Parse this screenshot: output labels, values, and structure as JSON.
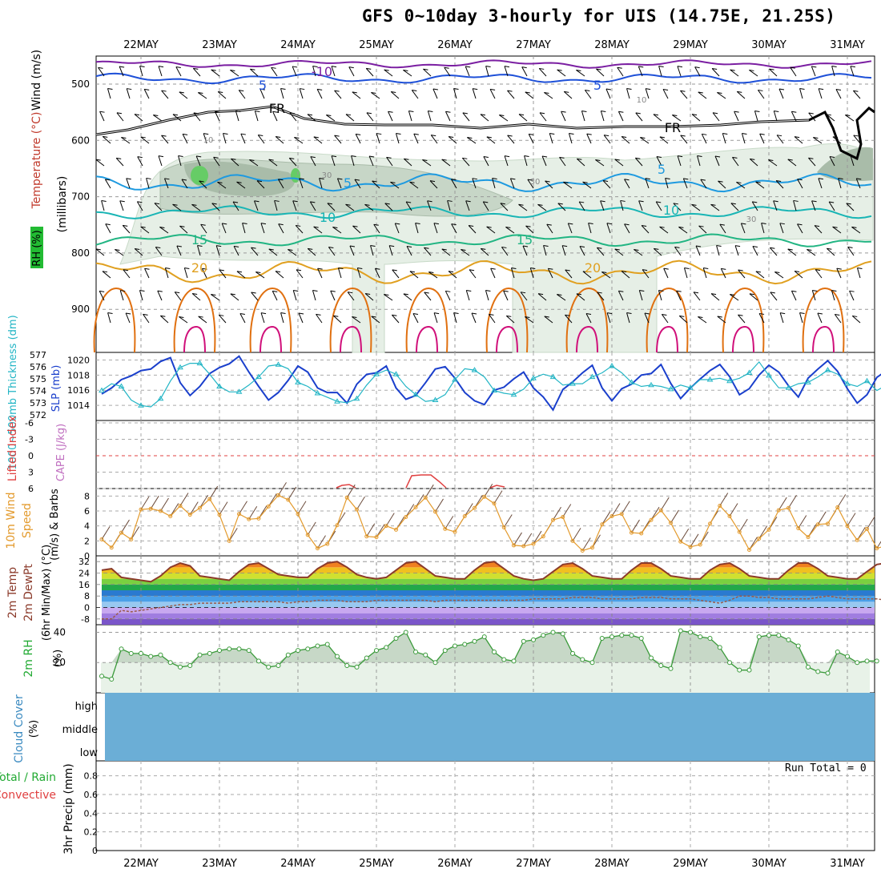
{
  "title": "GFS 0~10day 3-hourly for UIS (14.75E, 21.25S)",
  "dates": [
    "22MAY",
    "23MAY",
    "24MAY",
    "25MAY",
    "26MAY",
    "27MAY",
    "28MAY",
    "29MAY",
    "30MAY",
    "31MAY"
  ],
  "colors": {
    "isotherm_minus10": "#7b1fa2",
    "isotherm_5": "#1e50d8",
    "isotherm_freezing": "#000000",
    "isotherm_5_low": "#1e9ae0",
    "isotherm_10": "#19b5b5",
    "isotherm_15": "#22b583",
    "isotherm_20": "#e0a020",
    "isotherm_25": "#e07010",
    "isotherm_30": "#d0107a",
    "rh_shade": "#d8e8d8",
    "slp": "#1a3fcc",
    "thickness": "#22b5c5",
    "wind_speed": "#e39a2c",
    "temp_line": "#8b3a2a",
    "dewpoint_line": "#9a5a4a",
    "rh2m": "#3a9a3a",
    "cloud": "#6baed6",
    "cape_line": "#e04040"
  },
  "panels": {
    "upper": {
      "ylabel_wind": "Wind (m/s)",
      "ylabel_temp": "Temperature (°C)",
      "ylabel_rh": "RH (%)",
      "ylabel_mb": "(millibars)",
      "yticks": [
        "500",
        "600",
        "700",
        "800",
        "900"
      ],
      "contour_labels": [
        "-10",
        "5",
        "5",
        "FR",
        "FR",
        "5",
        "5",
        "10",
        "10",
        "15",
        "15",
        "20",
        "20",
        "30",
        "30",
        "30",
        "10",
        "10"
      ]
    },
    "slp_thickness": {
      "ylabel_left": "1000~500mb Thickness (dm)",
      "ylabel_right": "SLP (mb)",
      "ticks_left": [
        "577",
        "576",
        "575",
        "574",
        "573",
        "572"
      ],
      "ticks_right": [
        "1020",
        "1018",
        "1016",
        "1014"
      ]
    },
    "stability": {
      "ylabel_left": "Lifted Index",
      "ylabel_right": "CAPE (J/kg)",
      "ticks": [
        "-6",
        "-3",
        "0",
        "3",
        "6"
      ]
    },
    "wind10m": {
      "ylabel_left": "10m Wind",
      "ylabel_mid": "Speed",
      "ylabel_right": "(m/s) & Barbs",
      "ticks": [
        "8",
        "6",
        "4",
        "2",
        "0"
      ]
    },
    "temp2m": {
      "ylabel_1": "2m Temp",
      "ylabel_2": "2m DewPt",
      "ylabel_3": "(6hr Min/Max) (°C)",
      "ticks": [
        "32",
        "24",
        "16",
        "8",
        "0",
        "-8"
      ]
    },
    "rh2m": {
      "ylabel": "2m RH",
      "unit": "(%)",
      "ticks": [
        "40",
        "20"
      ]
    },
    "cloud": {
      "ylabel": "Cloud Cover",
      "unit": "(%)",
      "levels": [
        "high",
        "middle",
        "low"
      ]
    },
    "precip": {
      "ylabel_left1": "Total / Rain",
      "ylabel_left2": "Convective",
      "ylabel": "3hr Precip (mm)",
      "ticks": [
        "0.8",
        "0.6",
        "0.4",
        "0.2",
        "0"
      ],
      "run_total": "Run Total = 0"
    }
  },
  "chart_data": [
    {
      "type": "line",
      "panel": "SLP / 1000-500mb thickness",
      "x_unit": "3-hourly steps from 21MAY 12Z",
      "series": [
        {
          "name": "SLP (mb)",
          "values": [
            1015.5,
            1016.3,
            1017.4,
            1017.9,
            1018.6,
            1018.8,
            1019.8,
            1020.3,
            1017,
            1015.3,
            1016.5,
            1018.2,
            1019,
            1019.5,
            1020.5,
            1018.4,
            1016.5,
            1014.7,
            1015.7,
            1017.3,
            1019.2,
            1018.4,
            1016.3,
            1015.7,
            1015.7,
            1014.3,
            1016.8,
            1018.1,
            1018.3,
            1019.2,
            1016.3,
            1014.8,
            1015.3,
            1017,
            1018.8,
            1019.1,
            1017.6,
            1015.7,
            1014.6,
            1014.1,
            1016,
            1016.4,
            1017.5,
            1018.4,
            1016.3,
            1015.1,
            1013.4,
            1016.1,
            1017.1,
            1018.3,
            1019.3,
            1016.3,
            1014.6,
            1016.2,
            1016.8,
            1018,
            1018.2,
            1019.4,
            1016.9,
            1014.9,
            1016.3,
            1017.5,
            1018.6,
            1019.4,
            1017.8,
            1015.4,
            1016.2,
            1018,
            1019.3,
            1018.4,
            1016.6,
            1015.1,
            1017.6,
            1018.8,
            1019.9,
            1018.5,
            1016.2,
            1014.3,
            1015.4,
            1017.7,
            1018.6,
            1017.3,
            1015.7,
            1016.1,
            1016.2,
            1015.8,
            1016.9
          ]
        },
        {
          "name": "Thickness (dm)",
          "values": [
            574.2,
            574.7,
            574.5,
            573.5,
            573.1,
            573,
            573.6,
            574.9,
            575.9,
            576.2,
            576.2,
            575.4,
            574.5,
            574.1,
            574.1,
            574.6,
            575.2,
            576,
            576.1,
            575.8,
            574.8,
            574.5,
            574,
            573.7,
            573.4,
            573.3,
            573.6,
            574.6,
            575.4,
            575.7,
            575.4,
            574.5,
            573.9,
            573.4,
            573.5,
            573.9,
            575,
            575.8,
            575.7,
            575.2,
            574.2,
            574,
            573.9,
            574.3,
            575.1,
            575.4,
            575.2,
            574.6,
            574.7,
            574.7,
            575.2,
            575.5,
            576,
            575.5,
            574.8,
            574.5,
            574.6,
            574.5,
            574.3,
            574.6,
            574.4,
            575,
            575,
            575.1,
            574.9,
            575.1,
            575.5,
            576.3,
            575.3,
            574.4,
            574.4,
            574.7,
            574.8,
            575.2,
            575.7,
            575.4,
            574.7,
            574.5,
            574.9,
            574.2,
            574.6,
            575.7,
            575.9,
            575.4,
            574.4,
            574.1,
            574.1
          ]
        }
      ],
      "ylim_left": [
        572,
        577
      ],
      "ylim_right": [
        1012,
        1021
      ]
    },
    {
      "type": "line",
      "panel": "10m wind speed",
      "series": [
        {
          "name": "Speed (m/s)",
          "values": [
            2.2,
            1.1,
            3.1,
            2.2,
            6.2,
            6.3,
            6,
            5.3,
            6.7,
            5.5,
            6.4,
            7.6,
            5.5,
            2,
            5.6,
            4.9,
            5,
            6.6,
            8.1,
            7.5,
            5.6,
            2.8,
            1,
            1.6,
            4.1,
            7.8,
            6.2,
            2.6,
            2.5,
            4,
            3.5,
            5.2,
            6.5,
            7.8,
            5.9,
            3.6,
            3.2,
            5.3,
            6.4,
            7.9,
            7,
            3.8,
            1.4,
            1.3,
            1.6,
            2.6,
            4.8,
            5.2,
            2,
            0.7,
            1.1,
            4.2,
            5.3,
            5.6,
            3.1,
            3,
            4.8,
            6.1,
            4.4,
            1.9,
            1.2,
            1.5,
            4.3,
            6.7,
            5.3,
            3.2,
            0.8,
            2.3,
            3.5,
            6.1,
            6.4,
            3.7,
            2.5,
            4.2,
            4.3,
            6.5,
            4,
            2.1,
            3.6,
            1,
            1.4,
            1.3,
            2.2,
            4.5,
            4.6,
            2.4,
            4.7,
            6.3
          ]
        }
      ],
      "ylim": [
        0,
        9
      ]
    },
    {
      "type": "line",
      "panel": "2m Temp / DewPt",
      "series": [
        {
          "name": "2m Temp (°C)",
          "values": [
            26,
            27,
            21,
            20,
            19,
            18,
            22,
            28,
            31,
            29,
            22,
            21,
            20,
            19,
            25,
            30,
            31,
            27,
            23,
            22,
            21,
            21,
            27,
            31,
            32,
            28,
            23,
            21,
            20,
            21,
            26,
            31,
            32,
            27,
            22,
            21,
            20,
            20,
            26,
            31,
            32,
            27,
            22,
            20,
            19,
            20,
            25,
            30,
            31,
            27,
            22,
            21,
            20,
            20,
            26,
            31,
            31,
            27,
            22,
            21,
            20,
            20,
            26,
            30,
            31,
            27,
            22,
            21,
            20,
            20,
            26,
            31,
            31,
            27,
            22,
            21,
            20,
            20,
            25,
            30,
            31,
            26,
            22,
            21,
            20,
            19
          ]
        },
        {
          "name": "2m DewPt (°C)",
          "values": [
            -8,
            -8,
            -2,
            -3,
            -2,
            -1,
            0,
            1,
            2,
            2,
            3,
            3,
            3,
            3,
            4,
            4,
            4,
            4,
            4,
            3,
            4,
            4,
            5,
            5,
            5,
            4,
            4,
            4,
            5,
            5,
            5,
            5,
            5,
            5,
            4,
            5,
            5,
            5,
            5,
            5,
            5,
            5,
            5,
            5,
            6,
            6,
            6,
            6,
            7,
            7,
            7,
            6,
            6,
            6,
            6,
            7,
            7,
            7,
            6,
            6,
            6,
            5,
            4,
            3,
            5,
            8,
            8,
            7,
            7,
            6,
            6,
            6,
            6,
            7,
            8,
            7,
            6,
            6,
            6,
            6,
            5,
            5,
            5,
            5,
            5,
            5
          ]
        }
      ],
      "ylim": [
        -12,
        36
      ]
    },
    {
      "type": "area",
      "panel": "2m RH",
      "series": [
        {
          "name": "2m RH (%)",
          "values": [
            11,
            9,
            29,
            26,
            26,
            24,
            25,
            20,
            17,
            18,
            25,
            26,
            28,
            29,
            29,
            28,
            21,
            17,
            18,
            25,
            28,
            29,
            31,
            32,
            24,
            18,
            17,
            23,
            28,
            30,
            36,
            40,
            27,
            25,
            20,
            28,
            31,
            32,
            34,
            37,
            27,
            22,
            21,
            34,
            35,
            38,
            40,
            39,
            26,
            22,
            20,
            36,
            37,
            38,
            38,
            36,
            23,
            18,
            16,
            41,
            40,
            37,
            36,
            30,
            20,
            15,
            15,
            37,
            38,
            38,
            35,
            31,
            17,
            14,
            13,
            27,
            24,
            20,
            21,
            21
          ]
        }
      ],
      "ylim": [
        0,
        45
      ]
    }
  ]
}
